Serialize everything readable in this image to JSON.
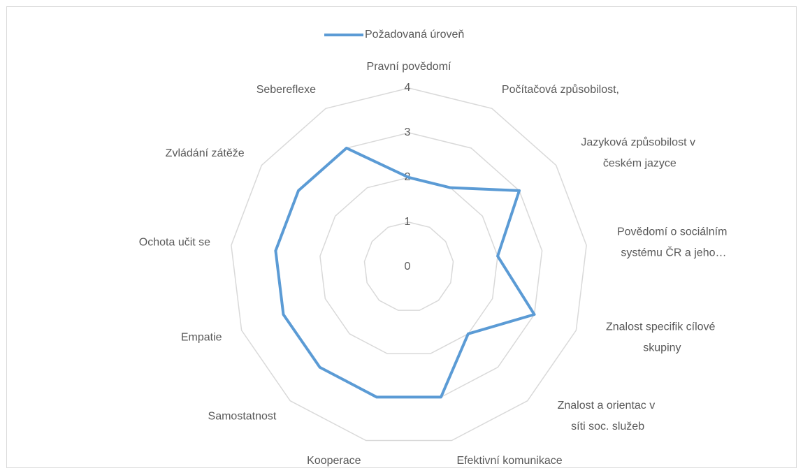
{
  "chart_data": {
    "type": "radar",
    "categories": [
      "Pravní povědomí",
      "Počítačová způsobilost,",
      "Jazyková způsobilost v českém jazyce",
      "Povědomí o sociálním systému ČR a jeho…",
      "Znalost specifik cílové skupiny",
      "Znalost a orientac v síti soc. služeb",
      "Efektivní komunikace",
      "Kooperace",
      "Samostatnost",
      "Empatie",
      "Ochota učit se",
      "Zvládání zátěže",
      "Sebereflexe"
    ],
    "series": [
      {
        "name": "Požadovaná úroveň",
        "color": "#5b9bd5",
        "values": [
          2,
          2,
          3,
          2,
          3,
          2,
          3,
          3,
          3,
          3,
          3,
          3,
          3
        ]
      }
    ],
    "ylim": [
      0,
      4
    ],
    "yticks": [
      0,
      1,
      2,
      3,
      4
    ],
    "grid": true,
    "legend": "top"
  }
}
